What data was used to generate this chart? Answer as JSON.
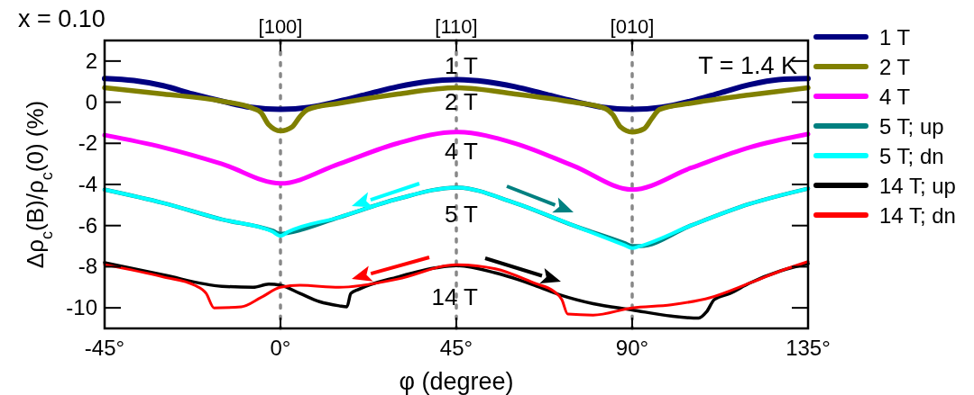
{
  "chart_data": {
    "type": "line",
    "xlabel": "φ (degree)",
    "ylabel": "Δρ$_{c}$(B)/ρ$_{c}$(0) (%)",
    "xlim": [
      -45,
      135
    ],
    "xticks": [
      {
        "value": -45,
        "label": "-45°"
      },
      {
        "value": 0,
        "label": "0°"
      },
      {
        "value": 45,
        "label": "45°"
      },
      {
        "value": 90,
        "label": "90°"
      },
      {
        "value": 135,
        "label": "135°"
      }
    ],
    "ylim": [
      -11,
      3
    ],
    "yticks": [
      -10,
      -8,
      -6,
      -4,
      -2,
      0,
      2
    ],
    "grid": false,
    "legend": "right",
    "marker": "none",
    "line_style": "solid",
    "ref_lines": [
      {
        "axis": "x",
        "value": 0,
        "color": "#888888",
        "line_style": "dotted"
      },
      {
        "axis": "x",
        "value": 45,
        "color": "#888888",
        "line_style": "dotted"
      },
      {
        "axis": "x",
        "value": 90,
        "color": "#888888",
        "line_style": "dotted"
      }
    ],
    "annotations": [
      "x = 0.10",
      "T = 1.4 K",
      "1 T",
      "2 T",
      "4 T",
      "5 T",
      "14 T",
      "[100]",
      "[110]",
      "[010]"
    ],
    "series": [
      {
        "name": "1 T",
        "color": "#000080",
        "x": [
          -45,
          -37.5,
          -30,
          -22.5,
          -15,
          -7.5,
          0,
          7.5,
          15,
          22.5,
          30,
          37.5,
          45,
          52.5,
          60,
          67.5,
          75,
          82.5,
          90,
          97.5,
          105,
          112.5,
          120,
          127.5,
          135
        ],
        "values": [
          1.15,
          1.05,
          0.8,
          0.4,
          0.05,
          -0.25,
          -0.35,
          -0.25,
          0.05,
          0.4,
          0.75,
          1.0,
          1.1,
          1.0,
          0.75,
          0.4,
          0.05,
          -0.25,
          -0.35,
          -0.25,
          0.05,
          0.45,
          0.85,
          1.1,
          1.15
        ]
      },
      {
        "name": "2 T",
        "color": "#808000",
        "x": [
          -45,
          -30,
          -15,
          -7,
          -5,
          -3,
          0,
          3,
          5,
          7,
          15,
          30,
          45,
          60,
          75,
          83,
          85,
          87,
          90,
          93,
          95,
          97,
          105,
          120,
          135
        ],
        "values": [
          0.7,
          0.4,
          0.05,
          -0.3,
          -0.5,
          -1.1,
          -1.4,
          -1.2,
          -0.7,
          -0.35,
          -0.05,
          0.4,
          0.7,
          0.4,
          0.0,
          -0.3,
          -0.6,
          -1.2,
          -1.45,
          -1.3,
          -0.8,
          -0.35,
          -0.05,
          0.35,
          0.7
        ]
      },
      {
        "name": "4 T",
        "color": "#ff00ff",
        "x": [
          -45,
          -30,
          -15,
          0,
          15,
          30,
          45,
          60,
          75,
          90,
          105,
          120,
          135
        ],
        "values": [
          -1.6,
          -2.2,
          -3.0,
          -3.95,
          -3.0,
          -2.0,
          -1.45,
          -2.0,
          -3.1,
          -4.25,
          -3.2,
          -2.2,
          -1.55
        ]
      },
      {
        "name": "5 T; up",
        "color": "#008080",
        "x": [
          -45,
          -30,
          -15,
          -2,
          0,
          2,
          15,
          30,
          45,
          60,
          75,
          88,
          90,
          92,
          105,
          120,
          135
        ],
        "values": [
          -4.25,
          -4.9,
          -5.7,
          -6.25,
          -6.4,
          -6.35,
          -5.6,
          -4.7,
          -4.15,
          -4.9,
          -6.0,
          -6.85,
          -7.0,
          -7.0,
          -6.0,
          -4.95,
          -4.2
        ]
      },
      {
        "name": "5 T; dn",
        "color": "#00ffff",
        "x": [
          -45,
          -30,
          -15,
          -2,
          0,
          2,
          15,
          30,
          45,
          60,
          75,
          88,
          90,
          92,
          105,
          120,
          135
        ],
        "values": [
          -4.25,
          -4.9,
          -5.7,
          -6.3,
          -6.5,
          -6.3,
          -5.6,
          -4.7,
          -4.15,
          -4.9,
          -6.0,
          -6.95,
          -7.1,
          -7.0,
          -6.0,
          -4.95,
          -4.2
        ]
      },
      {
        "name": "14 T; up",
        "color": "#000000",
        "x": [
          -45,
          -30,
          -15,
          -7,
          -3,
          0,
          5,
          10,
          15,
          17,
          18,
          20,
          30,
          40,
          45,
          55,
          65,
          72,
          80,
          90,
          100,
          107,
          109,
          111,
          115,
          120,
          128,
          135
        ],
        "values": [
          -7.8,
          -8.4,
          -8.95,
          -9.0,
          -8.85,
          -8.9,
          -9.3,
          -9.7,
          -9.9,
          -9.95,
          -9.3,
          -9.1,
          -8.5,
          -8.05,
          -7.95,
          -8.3,
          -8.9,
          -9.4,
          -9.8,
          -10.1,
          -10.4,
          -10.5,
          -10.2,
          -9.6,
          -9.3,
          -8.8,
          -8.2,
          -7.85
        ]
      },
      {
        "name": "14 T; dn",
        "color": "#ff0000",
        "x": [
          -45,
          -30,
          -22,
          -19,
          -17,
          -10,
          -5,
          0,
          5,
          15,
          30,
          45,
          55,
          65,
          70,
          72,
          73.5,
          80,
          90,
          100,
          110,
          120,
          128,
          135
        ],
        "values": [
          -7.9,
          -8.5,
          -8.9,
          -9.3,
          -10.0,
          -9.95,
          -9.5,
          -9.0,
          -8.9,
          -9.0,
          -8.6,
          -7.9,
          -8.1,
          -8.8,
          -9.2,
          -9.6,
          -10.3,
          -10.35,
          -10.0,
          -9.85,
          -9.5,
          -8.8,
          -8.2,
          -7.75
        ]
      }
    ]
  }
}
